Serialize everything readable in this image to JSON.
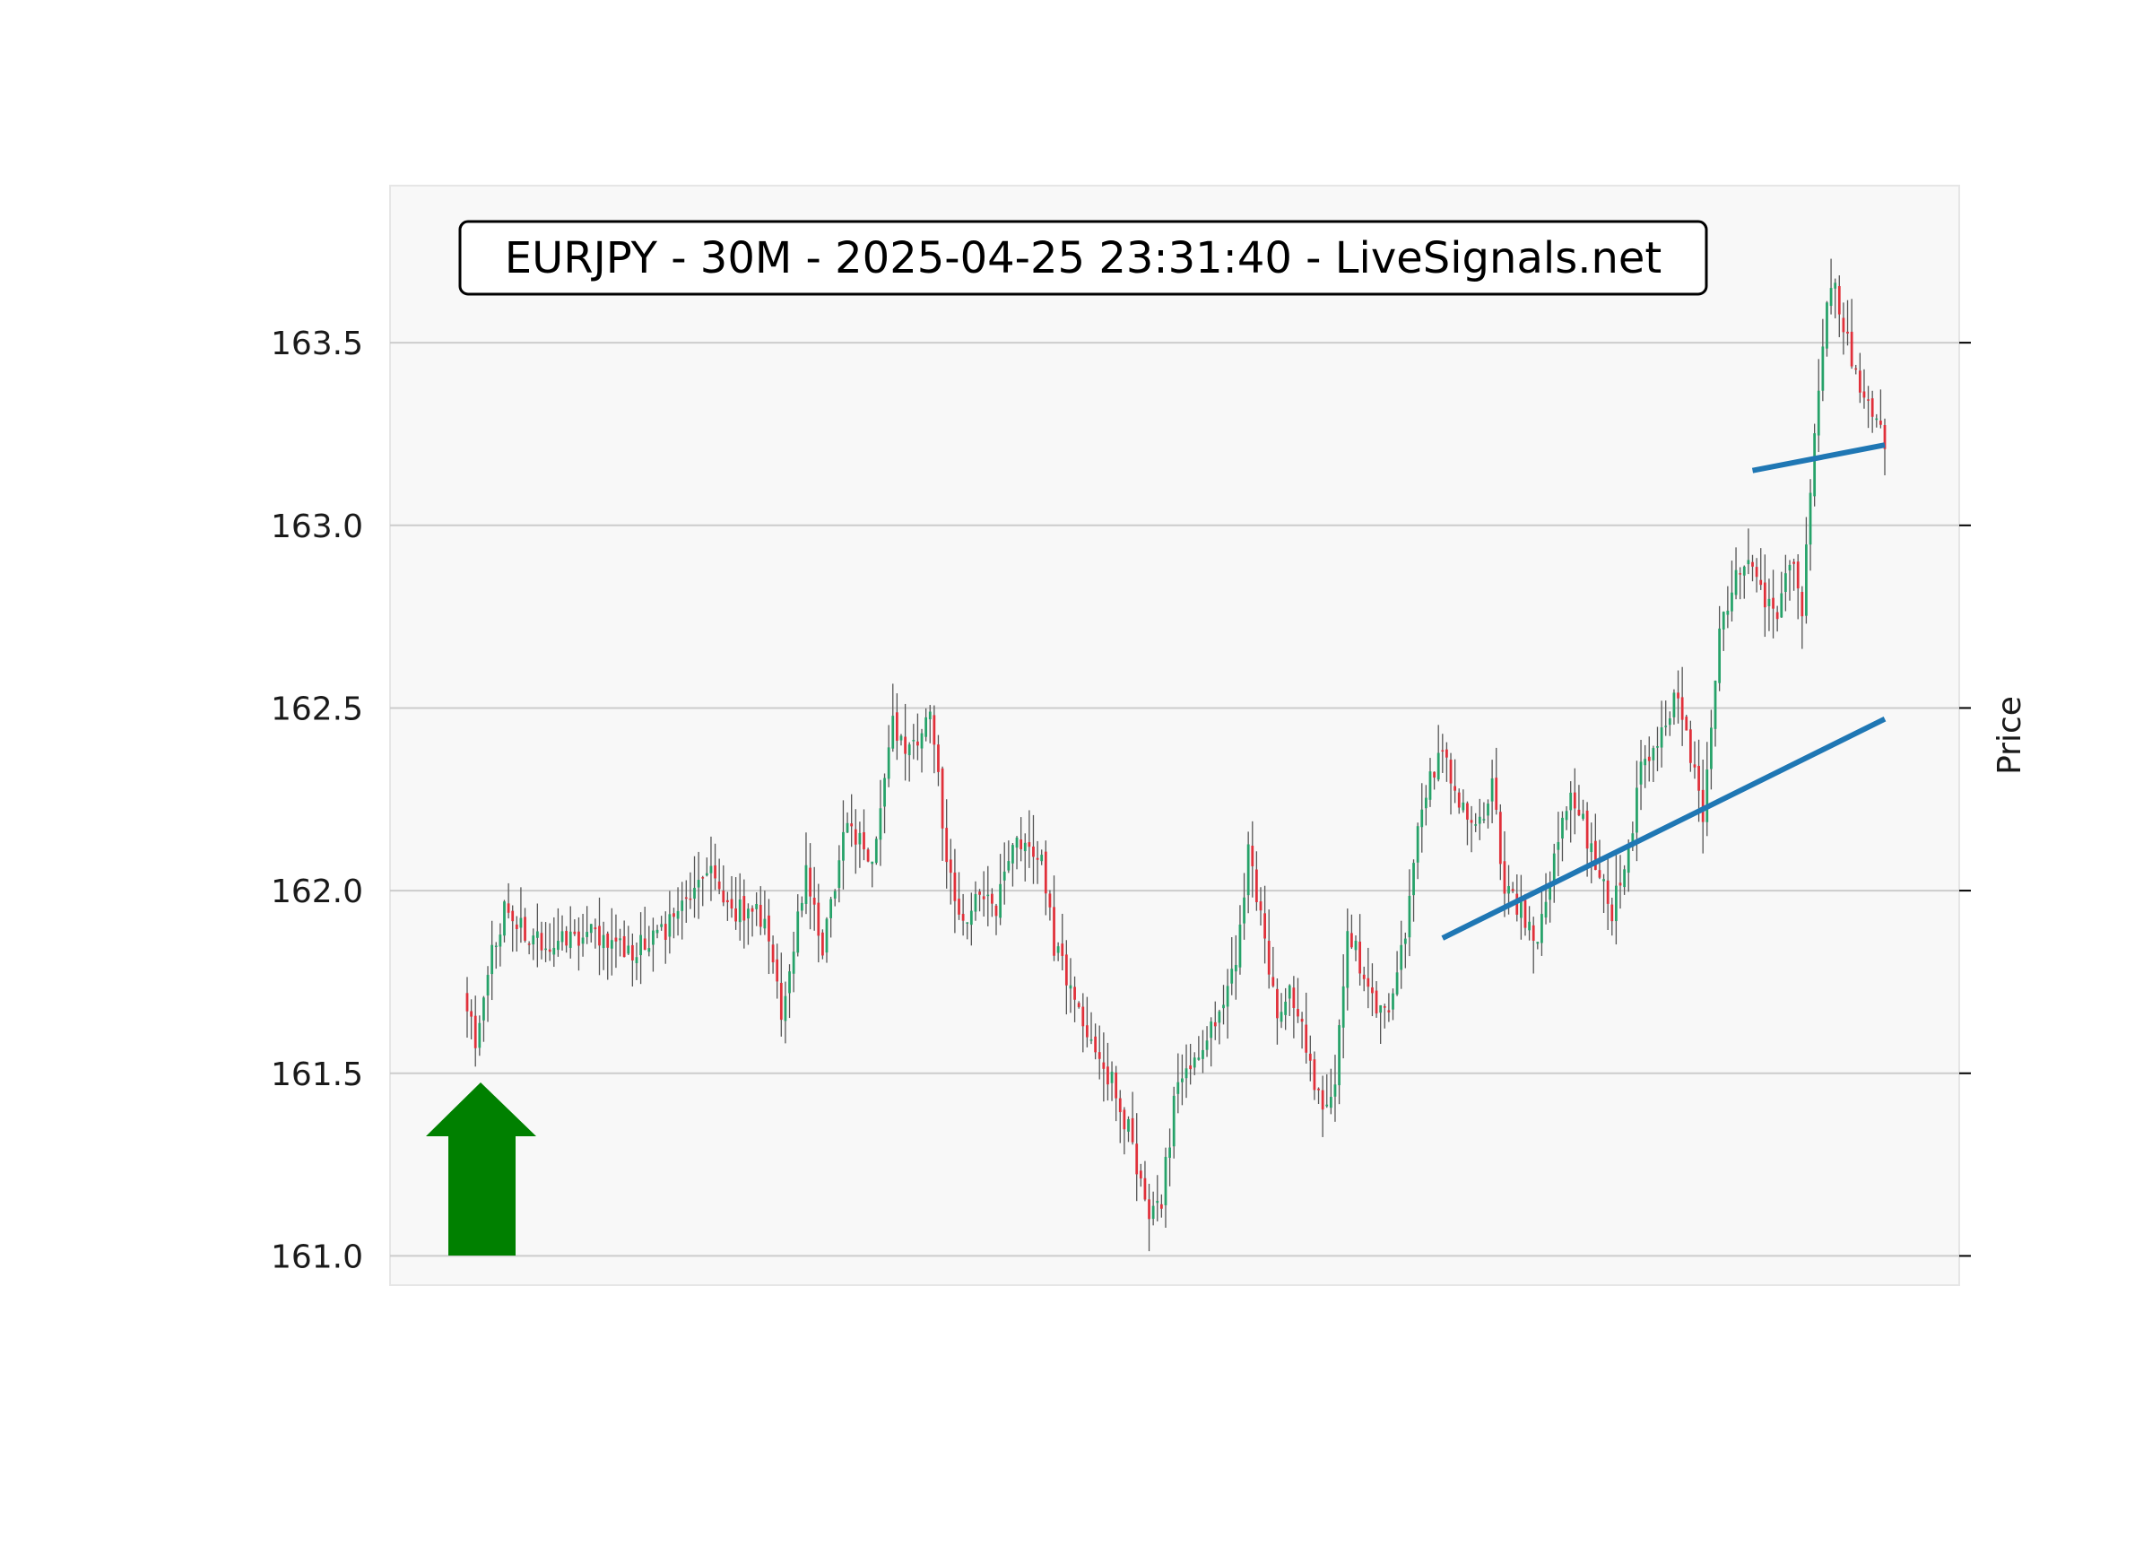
{
  "chart_data": {
    "type": "candlestick",
    "title": "EURJPY - 30M - 2025-04-25 23:31:40 - LiveSignals.net",
    "xlabel": "",
    "ylabel": "Price",
    "ylim": [
      160.92,
      163.93
    ],
    "yticks": [
      161.0,
      161.5,
      162.0,
      162.5,
      163.0,
      163.5
    ],
    "ytick_labels": [
      "161.0",
      "161.5",
      "162.0",
      "162.5",
      "163.0",
      "163.5"
    ],
    "grid": "horizontal",
    "y_axis_side": "right",
    "colors": {
      "up": "#26a269",
      "down": "#e0303a",
      "wick": "#555555",
      "grid": "#cccccc",
      "plot_bg": "#f8f8f8",
      "trendline": "#1f77b4",
      "arrow": "#008000"
    },
    "signal": {
      "direction": "up",
      "icon": "up-arrow-icon"
    },
    "anchors": [
      [
        0,
        161.7
      ],
      [
        2,
        161.57
      ],
      [
        5,
        161.78
      ],
      [
        9,
        161.95
      ],
      [
        18,
        161.85
      ],
      [
        30,
        161.88
      ],
      [
        40,
        161.84
      ],
      [
        48,
        161.9
      ],
      [
        58,
        162.05
      ],
      [
        65,
        161.95
      ],
      [
        72,
        161.92
      ],
      [
        76,
        161.65
      ],
      [
        82,
        162.05
      ],
      [
        86,
        161.85
      ],
      [
        92,
        162.2
      ],
      [
        98,
        162.05
      ],
      [
        103,
        162.45
      ],
      [
        108,
        162.38
      ],
      [
        112,
        162.5
      ],
      [
        116,
        162.1
      ],
      [
        120,
        161.9
      ],
      [
        124,
        162.0
      ],
      [
        128,
        161.95
      ],
      [
        133,
        162.15
      ],
      [
        139,
        162.1
      ],
      [
        142,
        161.85
      ],
      [
        146,
        161.75
      ],
      [
        150,
        161.6
      ],
      [
        155,
        161.5
      ],
      [
        160,
        161.35
      ],
      [
        165,
        161.1
      ],
      [
        168,
        161.15
      ],
      [
        172,
        161.5
      ],
      [
        176,
        161.55
      ],
      [
        182,
        161.65
      ],
      [
        186,
        161.8
      ],
      [
        189,
        162.1
      ],
      [
        192,
        161.95
      ],
      [
        196,
        161.65
      ],
      [
        199,
        161.75
      ],
      [
        203,
        161.58
      ],
      [
        207,
        161.38
      ],
      [
        210,
        161.5
      ],
      [
        213,
        161.9
      ],
      [
        218,
        161.72
      ],
      [
        222,
        161.65
      ],
      [
        227,
        161.9
      ],
      [
        230,
        162.2
      ],
      [
        236,
        162.4
      ],
      [
        240,
        162.25
      ],
      [
        244,
        162.15
      ],
      [
        248,
        162.3
      ],
      [
        251,
        162.0
      ],
      [
        255,
        161.95
      ],
      [
        259,
        161.85
      ],
      [
        263,
        162.1
      ],
      [
        267,
        162.25
      ],
      [
        270,
        162.18
      ],
      [
        274,
        162.05
      ],
      [
        277,
        161.95
      ],
      [
        281,
        162.1
      ],
      [
        284,
        162.35
      ],
      [
        288,
        162.38
      ],
      [
        292,
        162.52
      ],
      [
        295,
        162.45
      ],
      [
        299,
        162.18
      ],
      [
        303,
        162.7
      ],
      [
        307,
        162.85
      ],
      [
        311,
        162.88
      ],
      [
        314,
        162.8
      ],
      [
        317,
        162.75
      ],
      [
        320,
        162.9
      ],
      [
        323,
        162.78
      ],
      [
        327,
        163.4
      ],
      [
        330,
        163.68
      ],
      [
        333,
        163.55
      ],
      [
        337,
        163.35
      ],
      [
        340,
        163.3
      ],
      [
        343,
        163.22
      ]
    ],
    "trendlines": [
      {
        "from": [
          236,
          161.87
        ],
        "to": [
          343,
          162.47
        ]
      },
      {
        "from": [
          311,
          163.15
        ],
        "to": [
          343,
          163.22
        ]
      }
    ]
  }
}
